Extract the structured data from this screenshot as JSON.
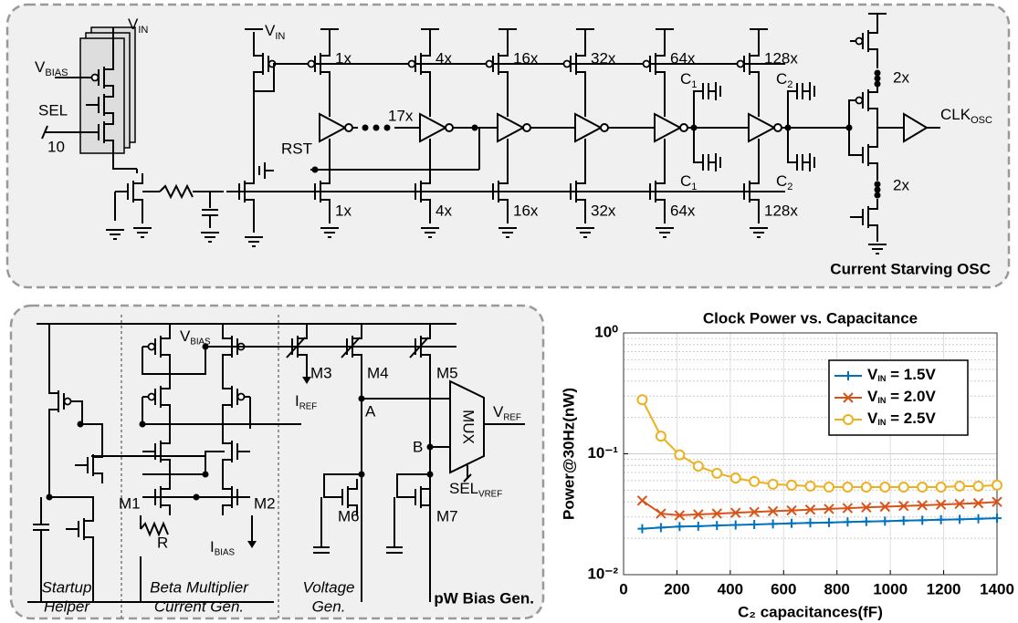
{
  "osc": {
    "title": "Current Starving OSC",
    "vin_left": {
      "main": "V",
      "sub": "IN"
    },
    "vbias": {
      "main": "V",
      "sub": "BIAS"
    },
    "sel": "SEL",
    "sel_bits": "10",
    "vin": {
      "main": "V",
      "sub": "IN"
    },
    "top_sizes": [
      "1x",
      "4x",
      "16x",
      "32x",
      "64x",
      "128x"
    ],
    "bottom_sizes": [
      "1x",
      "4x",
      "16x",
      "32x",
      "64x",
      "128x"
    ],
    "inverter_count": "17x",
    "rst": "RST",
    "caps_top": [
      {
        "main": "C",
        "sub": "1"
      },
      {
        "main": "C",
        "sub": "2"
      }
    ],
    "caps_bottom": [
      {
        "main": "C",
        "sub": "1"
      },
      {
        "main": "C",
        "sub": "2"
      }
    ],
    "out_sizes": [
      "2x",
      "2x"
    ],
    "clk": {
      "main": "CLK",
      "sub": "OSC"
    }
  },
  "bias": {
    "title": "pW Bias Gen.",
    "vbias": {
      "main": "V",
      "sub": "BIAS"
    },
    "transistors": [
      "M1",
      "M2",
      "M3",
      "M4",
      "M5",
      "M6",
      "M7"
    ],
    "resistor": "R",
    "iref": {
      "main": "I",
      "sub": "REF"
    },
    "ibias": {
      "main": "I",
      "sub": "BIAS"
    },
    "nodes": [
      "A",
      "B"
    ],
    "mux": "MUX",
    "vref": {
      "main": "V",
      "sub": "REF"
    },
    "sel_vref": {
      "main": "SEL",
      "sub": "VREF"
    },
    "sections": [
      [
        "Startup",
        "Helper"
      ],
      [
        "Beta Multiplier",
        "Current Gen."
      ],
      [
        "Voltage",
        "Gen."
      ]
    ]
  },
  "chart_data": {
    "type": "line",
    "title": "Clock Power vs. Capacitance",
    "x_label": "C₂ capacitances(fF)",
    "y_label": "Power@30Hz(nW)",
    "x": [
      70,
      140,
      210,
      280,
      350,
      420,
      490,
      560,
      630,
      700,
      770,
      840,
      910,
      980,
      1050,
      1120,
      1190,
      1260,
      1330,
      1400
    ],
    "series": [
      {
        "name": {
          "main": "V",
          "sub": "IN",
          "rest": " = 1.5V"
        },
        "color": "#0072BD",
        "marker": "plus",
        "values": [
          0.024,
          0.0245,
          0.025,
          0.0252,
          0.0255,
          0.0258,
          0.026,
          0.0263,
          0.0266,
          0.0268,
          0.027,
          0.0273,
          0.0275,
          0.0277,
          0.028,
          0.0282,
          0.0285,
          0.0287,
          0.029,
          0.0293
        ]
      },
      {
        "name": {
          "main": "V",
          "sub": "IN",
          "rest": " = 2.0V"
        },
        "color": "#D95319",
        "marker": "cross",
        "values": [
          0.041,
          0.032,
          0.031,
          0.0315,
          0.032,
          0.0325,
          0.033,
          0.0335,
          0.034,
          0.0345,
          0.035,
          0.0355,
          0.036,
          0.0365,
          0.037,
          0.0375,
          0.038,
          0.0385,
          0.039,
          0.04
        ]
      },
      {
        "name": {
          "main": "V",
          "sub": "IN",
          "rest": " = 2.5V"
        },
        "color": "#EDB120",
        "marker": "circle",
        "values": [
          0.28,
          0.14,
          0.098,
          0.079,
          0.069,
          0.063,
          0.059,
          0.056,
          0.055,
          0.054,
          0.053,
          0.053,
          0.053,
          0.053,
          0.053,
          0.053,
          0.053,
          0.054,
          0.054,
          0.055
        ]
      }
    ],
    "xlim": [
      0,
      1400
    ],
    "xticks": [
      0,
      200,
      400,
      600,
      800,
      1000,
      1200,
      1400
    ],
    "ylim": [
      0.01,
      1
    ],
    "log_y": true,
    "yticks": [
      {
        "value": 0.01,
        "label": "10⁻²"
      },
      {
        "value": 0.1,
        "label": "10⁻¹"
      },
      {
        "value": 1,
        "label": "10⁰"
      }
    ],
    "grid": true,
    "legend": "upper right"
  }
}
